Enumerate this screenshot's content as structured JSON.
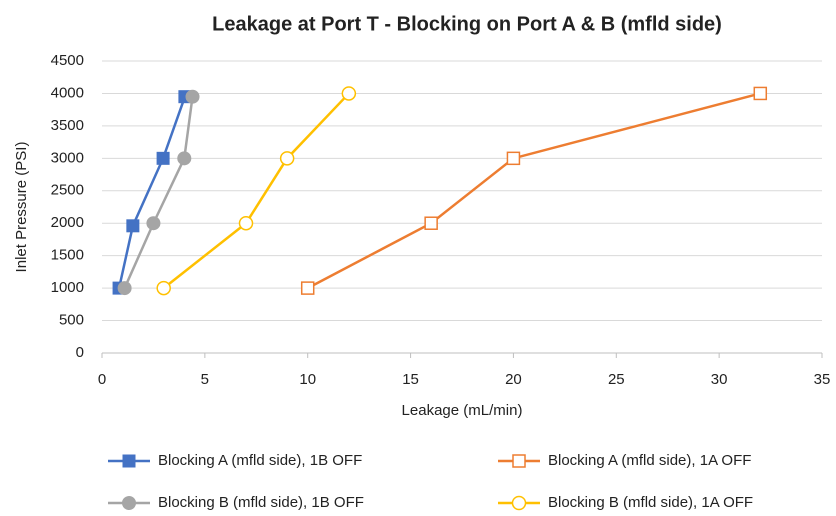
{
  "chart_data": {
    "type": "scatter",
    "title": "Leakage at Port T - Blocking on Port A & B (mfld side)",
    "x_label": "Leakage (mL/min)",
    "y_label": "Inlet Pressure (PSI)",
    "xlim": [
      0,
      35
    ],
    "xticks": [
      0,
      5,
      10,
      15,
      20,
      25,
      30,
      35
    ],
    "ylim": [
      0,
      4500
    ],
    "yticks": [
      0,
      500,
      1000,
      1500,
      2000,
      2500,
      3000,
      3500,
      4000,
      4500
    ],
    "grid": true,
    "legend": "bottom",
    "series": [
      {
        "name": "Blocking A (mfld side), 1B OFF",
        "color": "#4472c4",
        "marker": "square",
        "filled": true,
        "x": [
          0.83,
          1.5,
          2.97,
          4.03
        ],
        "values": [
          1000,
          1960,
          3000,
          3950
        ]
      },
      {
        "name": "Blocking A (mfld side), 1A OFF",
        "color": "#ed7d31",
        "marker": "square",
        "filled": false,
        "x": [
          10,
          16,
          20,
          32
        ],
        "values": [
          1000,
          2000,
          3000,
          4000
        ]
      },
      {
        "name": "Blocking B (mfld side), 1B OFF",
        "color": "#a5a5a5",
        "marker": "circle",
        "filled": true,
        "x": [
          1.1,
          2.5,
          4.0,
          4.4
        ],
        "values": [
          1000,
          2000,
          3000,
          3950
        ]
      },
      {
        "name": "Blocking B (mfld side), 1A OFF",
        "color": "#ffc000",
        "marker": "circle",
        "filled": false,
        "x": [
          3,
          7,
          9,
          12
        ],
        "values": [
          1000,
          2000,
          3000,
          4000
        ]
      }
    ]
  }
}
